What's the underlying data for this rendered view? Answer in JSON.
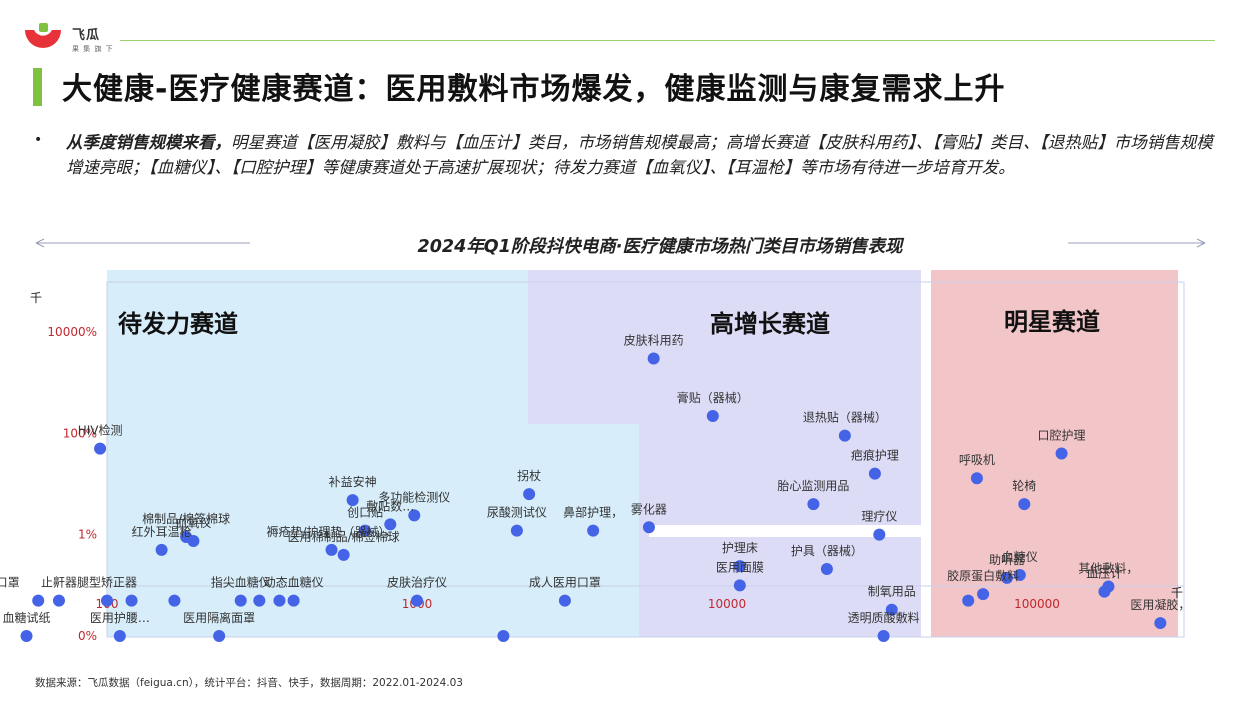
{
  "brand": {
    "name": "飞瓜",
    "sub": "果 集 旗 下"
  },
  "title": "大健康-医疗健康赛道：医用敷料市场爆发，健康监测与康复需求上升",
  "summary": {
    "bullet": "•",
    "lead": "从季度销售规模来看，",
    "text": "明星赛道【医用凝胶】敷料与【血压计】类目，市场销售规模最高；高增长赛道【皮肤科用药】、【膏贴】类目、【退热贴】市场销售规模增速亮眼；【血糖仪】、【口腔护理】等健康赛道处于高速扩展现状；待发力赛道【血氧仪】、【耳温枪】等市场有待进一步培育开发。"
  },
  "chart_data": {
    "type": "scatter",
    "title": "2024年Q1阶段抖快电商·医疗健康市场热门类目市场销售表现",
    "x_scale": "log",
    "y_scale": "log",
    "xlim": [
      18,
      250000
    ],
    "x_ticks": [
      {
        "label": "100",
        "value": 100
      },
      {
        "label": "1000",
        "value": 1000
      },
      {
        "label": "10000",
        "value": 10000
      },
      {
        "label": "100000",
        "value": 100000
      }
    ],
    "x_unit": "千",
    "y_ticks": [
      {
        "label": "0%",
        "value": 0.0001
      },
      {
        "label": "1%",
        "value": 0.01
      },
      {
        "label": "100%",
        "value": 1
      },
      {
        "label": "10000%",
        "value": 100
      }
    ],
    "y_unit": "千",
    "zones": [
      {
        "name": "待发力赛道",
        "color": "#d7eefa"
      },
      {
        "name": "高增长赛道",
        "color": "#dcdcf7"
      },
      {
        "name": "明星赛道",
        "color": "#f2c6c8"
      }
    ],
    "point_color": "#4463e6",
    "points": [
      {
        "label": "皮肤科用药",
        "x": 5800,
        "y": 30
      },
      {
        "label": "膏贴（器械）",
        "x": 9000,
        "y": 2.2
      },
      {
        "label": "退热贴（器械）",
        "x": 24000,
        "y": 0.9
      },
      {
        "label": "口腔护理",
        "x": 120000,
        "y": 0.4
      },
      {
        "label": "疤痕护理",
        "x": 30000,
        "y": 0.16
      },
      {
        "label": "呼吸机",
        "x": 64000,
        "y": 0.13
      },
      {
        "label": "轮椅",
        "x": 91000,
        "y": 0.04
      },
      {
        "label": "胎心监测用品",
        "x": 19000,
        "y": 0.04
      },
      {
        "label": "理疗仪",
        "x": 31000,
        "y": 0.01
      },
      {
        "label": "护理床",
        "x": 11000,
        "y": 0.0024
      },
      {
        "label": "护具（器械）",
        "x": 21000,
        "y": 0.0021
      },
      {
        "label": "助听器",
        "x": 80000,
        "y": 0.0014
      },
      {
        "label": "血糖仪",
        "x": 88000,
        "y": 0.0016
      },
      {
        "label": "医用面膜",
        "x": 11000,
        "y": 0.001
      },
      {
        "label": "制氧用品",
        "x": 34000,
        "y": 0.00033
      },
      {
        "label": "胶原蛋白敷料",
        "x": 67000,
        "y": 0.00067
      },
      {
        "label": "透明质酸敷料",
        "x": 32000,
        "y": 0.0001
      },
      {
        "label": "其他敷料，",
        "x": 170000,
        "y": 0.00095
      },
      {
        "label": "血压计",
        "x": 165000,
        "y": 0.00075
      },
      {
        "label": "医用凝胶，",
        "x": 250000,
        "y": 0.00018
      },
      {
        "label": "HIV检测",
        "x": 95,
        "y": 0.5
      },
      {
        "label": "补益安神",
        "x": 620,
        "y": 0.048
      },
      {
        "label": "多功能检测仪",
        "x": 980,
        "y": 0.024
      },
      {
        "label": "敷贴数…",
        "x": 820,
        "y": 0.016
      },
      {
        "label": "拐杖",
        "x": 2300,
        "y": 0.063
      },
      {
        "label": "创口贴",
        "x": 680,
        "y": 0.012
      },
      {
        "label": "尿酸测试仪",
        "x": 2100,
        "y": 0.012
      },
      {
        "label": "鼻部护理，",
        "x": 3700,
        "y": 0.012
      },
      {
        "label": "雾化器",
        "x": 5600,
        "y": 0.014
      },
      {
        "label": "棉制品/棉签棉球",
        "x": 180,
        "y": 0.009
      },
      {
        "label": "红外耳温枪",
        "x": 150,
        "y": 0.005
      },
      {
        "label": "血氧仪",
        "x": 190,
        "y": 0.0075
      },
      {
        "label": "褥疮垫/护理垫（器械），",
        "x": 530,
        "y": 0.005
      },
      {
        "label": "医用棉制品/棉签棉球",
        "x": 580,
        "y": 0.004
      },
      {
        "label": "儿童医用口罩",
        "x": 40,
        "y": 0.0005
      },
      {
        "label": "腿型矫正器",
        "x": 100,
        "y": 0.0005
      },
      {
        "label": "皮肤治疗仪",
        "x": 1000,
        "y": 0.0005
      },
      {
        "label": "成人医用口罩",
        "x": 3000,
        "y": 0.0005
      },
      {
        "label": "止鼾器",
        "x": 70,
        "y": 0.0005
      },
      {
        "label": "指尖血糖仪",
        "x": 270,
        "y": 0.0005
      },
      {
        "label": "动态血糖仪",
        "x": 400,
        "y": 0.0005
      },
      {
        "label": "医用护腰…",
        "x": 110,
        "y": 0.0001
      },
      {
        "label": "医用隔离面罩",
        "x": 230,
        "y": 0.0001
      },
      {
        "label": "血糖试纸",
        "x": 55,
        "y": 0.0001
      }
    ],
    "extra_points": [
      {
        "x": 60,
        "y": 0.0005
      },
      {
        "x": 120,
        "y": 0.0005
      },
      {
        "x": 165,
        "y": 0.0005
      },
      {
        "x": 310,
        "y": 0.0005
      },
      {
        "x": 360,
        "y": 0.0005
      },
      {
        "x": 1900,
        "y": 0.0001
      },
      {
        "x": 60000,
        "y": 0.0005
      }
    ]
  },
  "source": "数据来源：飞瓜数据（feigua.cn），统计平台：抖音、快手，数据周期：2022.01-2024.03"
}
